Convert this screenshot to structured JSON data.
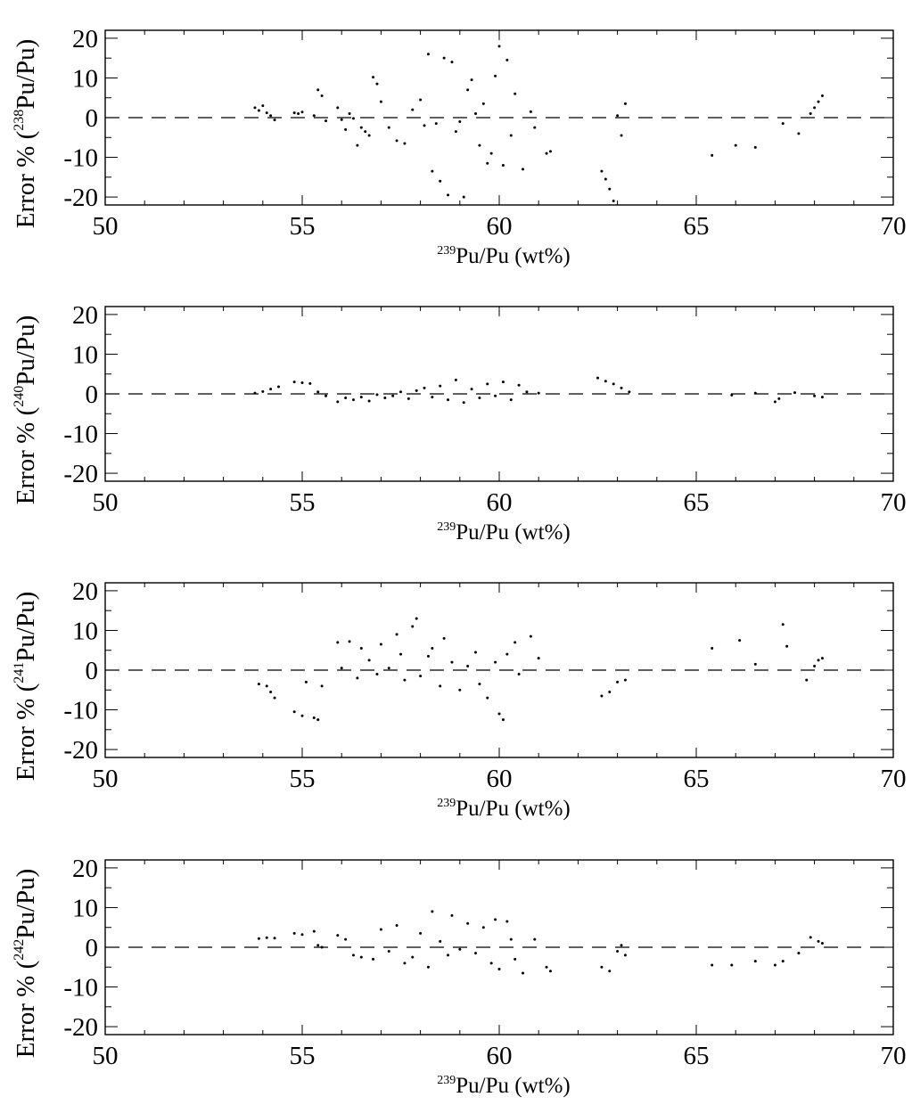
{
  "chart_data": [
    {
      "type": "scatter",
      "title": "",
      "xlabel_sup": "239",
      "xlabel": "Pu/Pu (wt%)",
      "ylabel_prefix": "Error % (",
      "ylabel_sup": "238",
      "ylabel_suffix": "Pu/Pu)",
      "xlim": [
        50,
        70
      ],
      "ylim": [
        -22,
        22
      ],
      "xticks": [
        "50",
        "55",
        "60",
        "65",
        "70"
      ],
      "yticks": [
        "-20",
        "-10",
        "0",
        "10",
        "20"
      ],
      "reference_line": {
        "y": 0,
        "style": "dashed"
      },
      "grid": false,
      "legend": "none",
      "series": [
        {
          "marker": "dot",
          "color": "#000000",
          "points": [
            [
              53.8,
              2.5
            ],
            [
              53.9,
              1.8
            ],
            [
              54.0,
              3.0
            ],
            [
              54.1,
              1.2
            ],
            [
              54.2,
              0.5
            ],
            [
              54.3,
              -0.6
            ],
            [
              54.8,
              1.2
            ],
            [
              54.9,
              1.0
            ],
            [
              55.0,
              1.4
            ],
            [
              55.3,
              0.5
            ],
            [
              55.4,
              7.0
            ],
            [
              55.5,
              5.5
            ],
            [
              55.6,
              -0.8
            ],
            [
              55.9,
              2.5
            ],
            [
              56.0,
              -0.5
            ],
            [
              56.1,
              -3.0
            ],
            [
              56.2,
              1.0
            ],
            [
              56.3,
              -0.2
            ],
            [
              56.4,
              -7.0
            ],
            [
              56.5,
              -2.5
            ],
            [
              56.6,
              -3.5
            ],
            [
              56.7,
              -4.5
            ],
            [
              56.8,
              10.2
            ],
            [
              56.9,
              8.5
            ],
            [
              57.0,
              4.0
            ],
            [
              57.2,
              -2.5
            ],
            [
              57.4,
              -5.8
            ],
            [
              57.6,
              -6.5
            ],
            [
              57.8,
              2.0
            ],
            [
              58.0,
              4.5
            ],
            [
              58.1,
              -2.0
            ],
            [
              58.2,
              16.0
            ],
            [
              58.3,
              -13.5
            ],
            [
              58.4,
              -1.5
            ],
            [
              58.5,
              -16.0
            ],
            [
              58.6,
              15.0
            ],
            [
              58.7,
              -19.5
            ],
            [
              58.8,
              14.0
            ],
            [
              58.9,
              -3.5
            ],
            [
              59.0,
              -1.0
            ],
            [
              59.1,
              -20.0
            ],
            [
              59.2,
              7.0
            ],
            [
              59.3,
              9.5
            ],
            [
              59.4,
              1.0
            ],
            [
              59.5,
              -7.0
            ],
            [
              59.6,
              3.5
            ],
            [
              59.7,
              -11.5
            ],
            [
              59.8,
              -9.0
            ],
            [
              59.9,
              10.5
            ],
            [
              60.0,
              18.0
            ],
            [
              60.1,
              -12.0
            ],
            [
              60.2,
              14.5
            ],
            [
              60.3,
              -4.5
            ],
            [
              60.4,
              6.0
            ],
            [
              60.6,
              -13.0
            ],
            [
              60.8,
              1.5
            ],
            [
              60.9,
              -2.5
            ],
            [
              61.2,
              -9.0
            ],
            [
              61.3,
              -8.5
            ],
            [
              62.6,
              -13.5
            ],
            [
              62.7,
              -15.5
            ],
            [
              62.8,
              -18.0
            ],
            [
              62.9,
              -21.0
            ],
            [
              63.0,
              0.5
            ],
            [
              63.1,
              -4.5
            ],
            [
              63.2,
              3.5
            ],
            [
              65.4,
              -9.5
            ],
            [
              66.0,
              -7.0
            ],
            [
              66.5,
              -7.5
            ],
            [
              67.2,
              -1.5
            ],
            [
              67.6,
              -4.0
            ],
            [
              67.9,
              1.0
            ],
            [
              68.0,
              2.5
            ],
            [
              68.1,
              4.0
            ],
            [
              68.2,
              5.5
            ]
          ]
        }
      ]
    },
    {
      "type": "scatter",
      "title": "",
      "xlabel_sup": "239",
      "xlabel": "Pu/Pu (wt%)",
      "ylabel_prefix": "Error % (",
      "ylabel_sup": "240",
      "ylabel_suffix": "Pu/Pu)",
      "xlim": [
        50,
        70
      ],
      "ylim": [
        -22,
        22
      ],
      "xticks": [
        "50",
        "55",
        "60",
        "65",
        "70"
      ],
      "yticks": [
        "-20",
        "-10",
        "0",
        "10",
        "20"
      ],
      "reference_line": {
        "y": 0,
        "style": "dashed"
      },
      "grid": false,
      "legend": "none",
      "series": [
        {
          "marker": "dot",
          "color": "#000000",
          "points": [
            [
              53.8,
              0.2
            ],
            [
              54.0,
              0.6
            ],
            [
              54.2,
              1.2
            ],
            [
              54.4,
              1.8
            ],
            [
              54.8,
              3.0
            ],
            [
              55.0,
              2.8
            ],
            [
              55.2,
              2.6
            ],
            [
              55.4,
              0.5
            ],
            [
              55.6,
              -0.5
            ],
            [
              55.9,
              -2.0
            ],
            [
              56.1,
              -1.0
            ],
            [
              56.3,
              -1.5
            ],
            [
              56.5,
              -0.8
            ],
            [
              56.7,
              -1.8
            ],
            [
              56.9,
              -0.2
            ],
            [
              57.1,
              -1.0
            ],
            [
              57.3,
              -0.5
            ],
            [
              57.5,
              0.5
            ],
            [
              57.7,
              -1.2
            ],
            [
              57.9,
              0.8
            ],
            [
              58.1,
              1.5
            ],
            [
              58.3,
              -0.8
            ],
            [
              58.5,
              2.0
            ],
            [
              58.7,
              -1.5
            ],
            [
              58.9,
              3.5
            ],
            [
              59.1,
              -2.2
            ],
            [
              59.3,
              1.2
            ],
            [
              59.5,
              -1.0
            ],
            [
              59.7,
              2.5
            ],
            [
              59.9,
              -0.5
            ],
            [
              60.1,
              3.0
            ],
            [
              60.3,
              -1.5
            ],
            [
              60.5,
              2.2
            ],
            [
              60.7,
              0.5
            ],
            [
              61.0,
              0.2
            ],
            [
              62.5,
              4.0
            ],
            [
              62.7,
              3.2
            ],
            [
              62.9,
              2.5
            ],
            [
              63.1,
              1.5
            ],
            [
              63.3,
              0.5
            ],
            [
              65.9,
              -0.3
            ],
            [
              66.5,
              0.2
            ],
            [
              67.0,
              -2.0
            ],
            [
              67.1,
              -1.2
            ],
            [
              67.5,
              0.3
            ],
            [
              68.0,
              -0.5
            ],
            [
              68.2,
              -0.8
            ]
          ]
        }
      ]
    },
    {
      "type": "scatter",
      "title": "",
      "xlabel_sup": "239",
      "xlabel": "Pu/Pu (wt%)",
      "ylabel_prefix": "Error % (",
      "ylabel_sup": "241",
      "ylabel_suffix": "Pu/Pu)",
      "xlim": [
        50,
        70
      ],
      "ylim": [
        -22,
        22
      ],
      "xticks": [
        "50",
        "55",
        "60",
        "65",
        "70"
      ],
      "yticks": [
        "-20",
        "-10",
        "0",
        "10",
        "20"
      ],
      "reference_line": {
        "y": 0,
        "style": "dashed"
      },
      "grid": false,
      "legend": "none",
      "series": [
        {
          "marker": "dot",
          "color": "#000000",
          "points": [
            [
              53.9,
              -3.5
            ],
            [
              54.1,
              -4.0
            ],
            [
              54.2,
              -5.5
            ],
            [
              54.3,
              -7.0
            ],
            [
              54.8,
              -10.5
            ],
            [
              55.0,
              -11.5
            ],
            [
              55.1,
              -3.0
            ],
            [
              55.3,
              -12.0
            ],
            [
              55.4,
              -12.5
            ],
            [
              55.5,
              -4.0
            ],
            [
              55.9,
              7.0
            ],
            [
              56.0,
              0.5
            ],
            [
              56.2,
              7.2
            ],
            [
              56.4,
              -2.0
            ],
            [
              56.5,
              5.5
            ],
            [
              56.7,
              2.5
            ],
            [
              56.9,
              -1.0
            ],
            [
              57.0,
              6.5
            ],
            [
              57.2,
              0.5
            ],
            [
              57.4,
              9.0
            ],
            [
              57.5,
              4.0
            ],
            [
              57.6,
              -2.5
            ],
            [
              57.8,
              11.0
            ],
            [
              57.9,
              13.0
            ],
            [
              58.0,
              -1.5
            ],
            [
              58.2,
              3.5
            ],
            [
              58.3,
              5.5
            ],
            [
              58.5,
              -4.0
            ],
            [
              58.6,
              8.0
            ],
            [
              58.8,
              2.0
            ],
            [
              59.0,
              -5.0
            ],
            [
              59.2,
              1.0
            ],
            [
              59.4,
              4.5
            ],
            [
              59.5,
              -3.5
            ],
            [
              59.7,
              -7.0
            ],
            [
              59.9,
              2.0
            ],
            [
              60.0,
              -11.0
            ],
            [
              60.1,
              -12.5
            ],
            [
              60.2,
              4.0
            ],
            [
              60.4,
              7.0
            ],
            [
              60.5,
              -1.0
            ],
            [
              60.8,
              8.5
            ],
            [
              61.0,
              3.0
            ],
            [
              62.6,
              -6.5
            ],
            [
              62.8,
              -5.5
            ],
            [
              63.0,
              -3.0
            ],
            [
              63.2,
              -2.5
            ],
            [
              65.4,
              5.5
            ],
            [
              66.1,
              7.5
            ],
            [
              66.5,
              1.5
            ],
            [
              67.2,
              11.5
            ],
            [
              67.3,
              6.0
            ],
            [
              67.8,
              -2.5
            ],
            [
              68.0,
              1.0
            ],
            [
              68.1,
              2.5
            ],
            [
              68.2,
              3.0
            ]
          ]
        }
      ]
    },
    {
      "type": "scatter",
      "title": "",
      "xlabel_sup": "239",
      "xlabel": "Pu/Pu (wt%)",
      "ylabel_prefix": "Error % (",
      "ylabel_sup": "242",
      "ylabel_suffix": "Pu/Pu)",
      "xlim": [
        50,
        70
      ],
      "ylim": [
        -22,
        22
      ],
      "xticks": [
        "50",
        "55",
        "60",
        "65",
        "70"
      ],
      "yticks": [
        "-20",
        "-10",
        "0",
        "10",
        "20"
      ],
      "reference_line": {
        "y": 0,
        "style": "dashed"
      },
      "grid": false,
      "legend": "none",
      "series": [
        {
          "marker": "dot",
          "color": "#000000",
          "points": [
            [
              53.9,
              2.2
            ],
            [
              54.1,
              2.4
            ],
            [
              54.3,
              2.3
            ],
            [
              54.8,
              3.5
            ],
            [
              55.0,
              3.2
            ],
            [
              55.3,
              4.0
            ],
            [
              55.4,
              0.5
            ],
            [
              55.5,
              0.0
            ],
            [
              55.9,
              3.0
            ],
            [
              56.1,
              2.0
            ],
            [
              56.3,
              -2.0
            ],
            [
              56.5,
              -2.5
            ],
            [
              56.8,
              -3.0
            ],
            [
              57.0,
              4.5
            ],
            [
              57.2,
              -1.0
            ],
            [
              57.4,
              5.5
            ],
            [
              57.6,
              -4.0
            ],
            [
              57.8,
              -2.5
            ],
            [
              58.0,
              3.5
            ],
            [
              58.2,
              -5.0
            ],
            [
              58.3,
              9.0
            ],
            [
              58.5,
              1.5
            ],
            [
              58.7,
              -2.0
            ],
            [
              58.8,
              8.0
            ],
            [
              59.0,
              -0.5
            ],
            [
              59.2,
              6.0
            ],
            [
              59.4,
              -1.5
            ],
            [
              59.6,
              5.0
            ],
            [
              59.8,
              -4.0
            ],
            [
              59.9,
              7.0
            ],
            [
              60.0,
              -5.5
            ],
            [
              60.2,
              6.5
            ],
            [
              60.3,
              2.0
            ],
            [
              60.4,
              -3.0
            ],
            [
              60.6,
              -6.5
            ],
            [
              60.9,
              2.0
            ],
            [
              61.2,
              -5.0
            ],
            [
              61.3,
              -6.0
            ],
            [
              62.6,
              -5.0
            ],
            [
              62.8,
              -6.0
            ],
            [
              63.0,
              -1.0
            ],
            [
              63.1,
              0.5
            ],
            [
              63.2,
              -2.0
            ],
            [
              65.4,
              -4.5
            ],
            [
              65.9,
              -4.5
            ],
            [
              66.5,
              -3.5
            ],
            [
              67.0,
              -4.5
            ],
            [
              67.2,
              -3.5
            ],
            [
              67.6,
              -1.5
            ],
            [
              67.9,
              2.5
            ],
            [
              68.1,
              1.5
            ],
            [
              68.2,
              1.0
            ]
          ]
        }
      ]
    }
  ]
}
